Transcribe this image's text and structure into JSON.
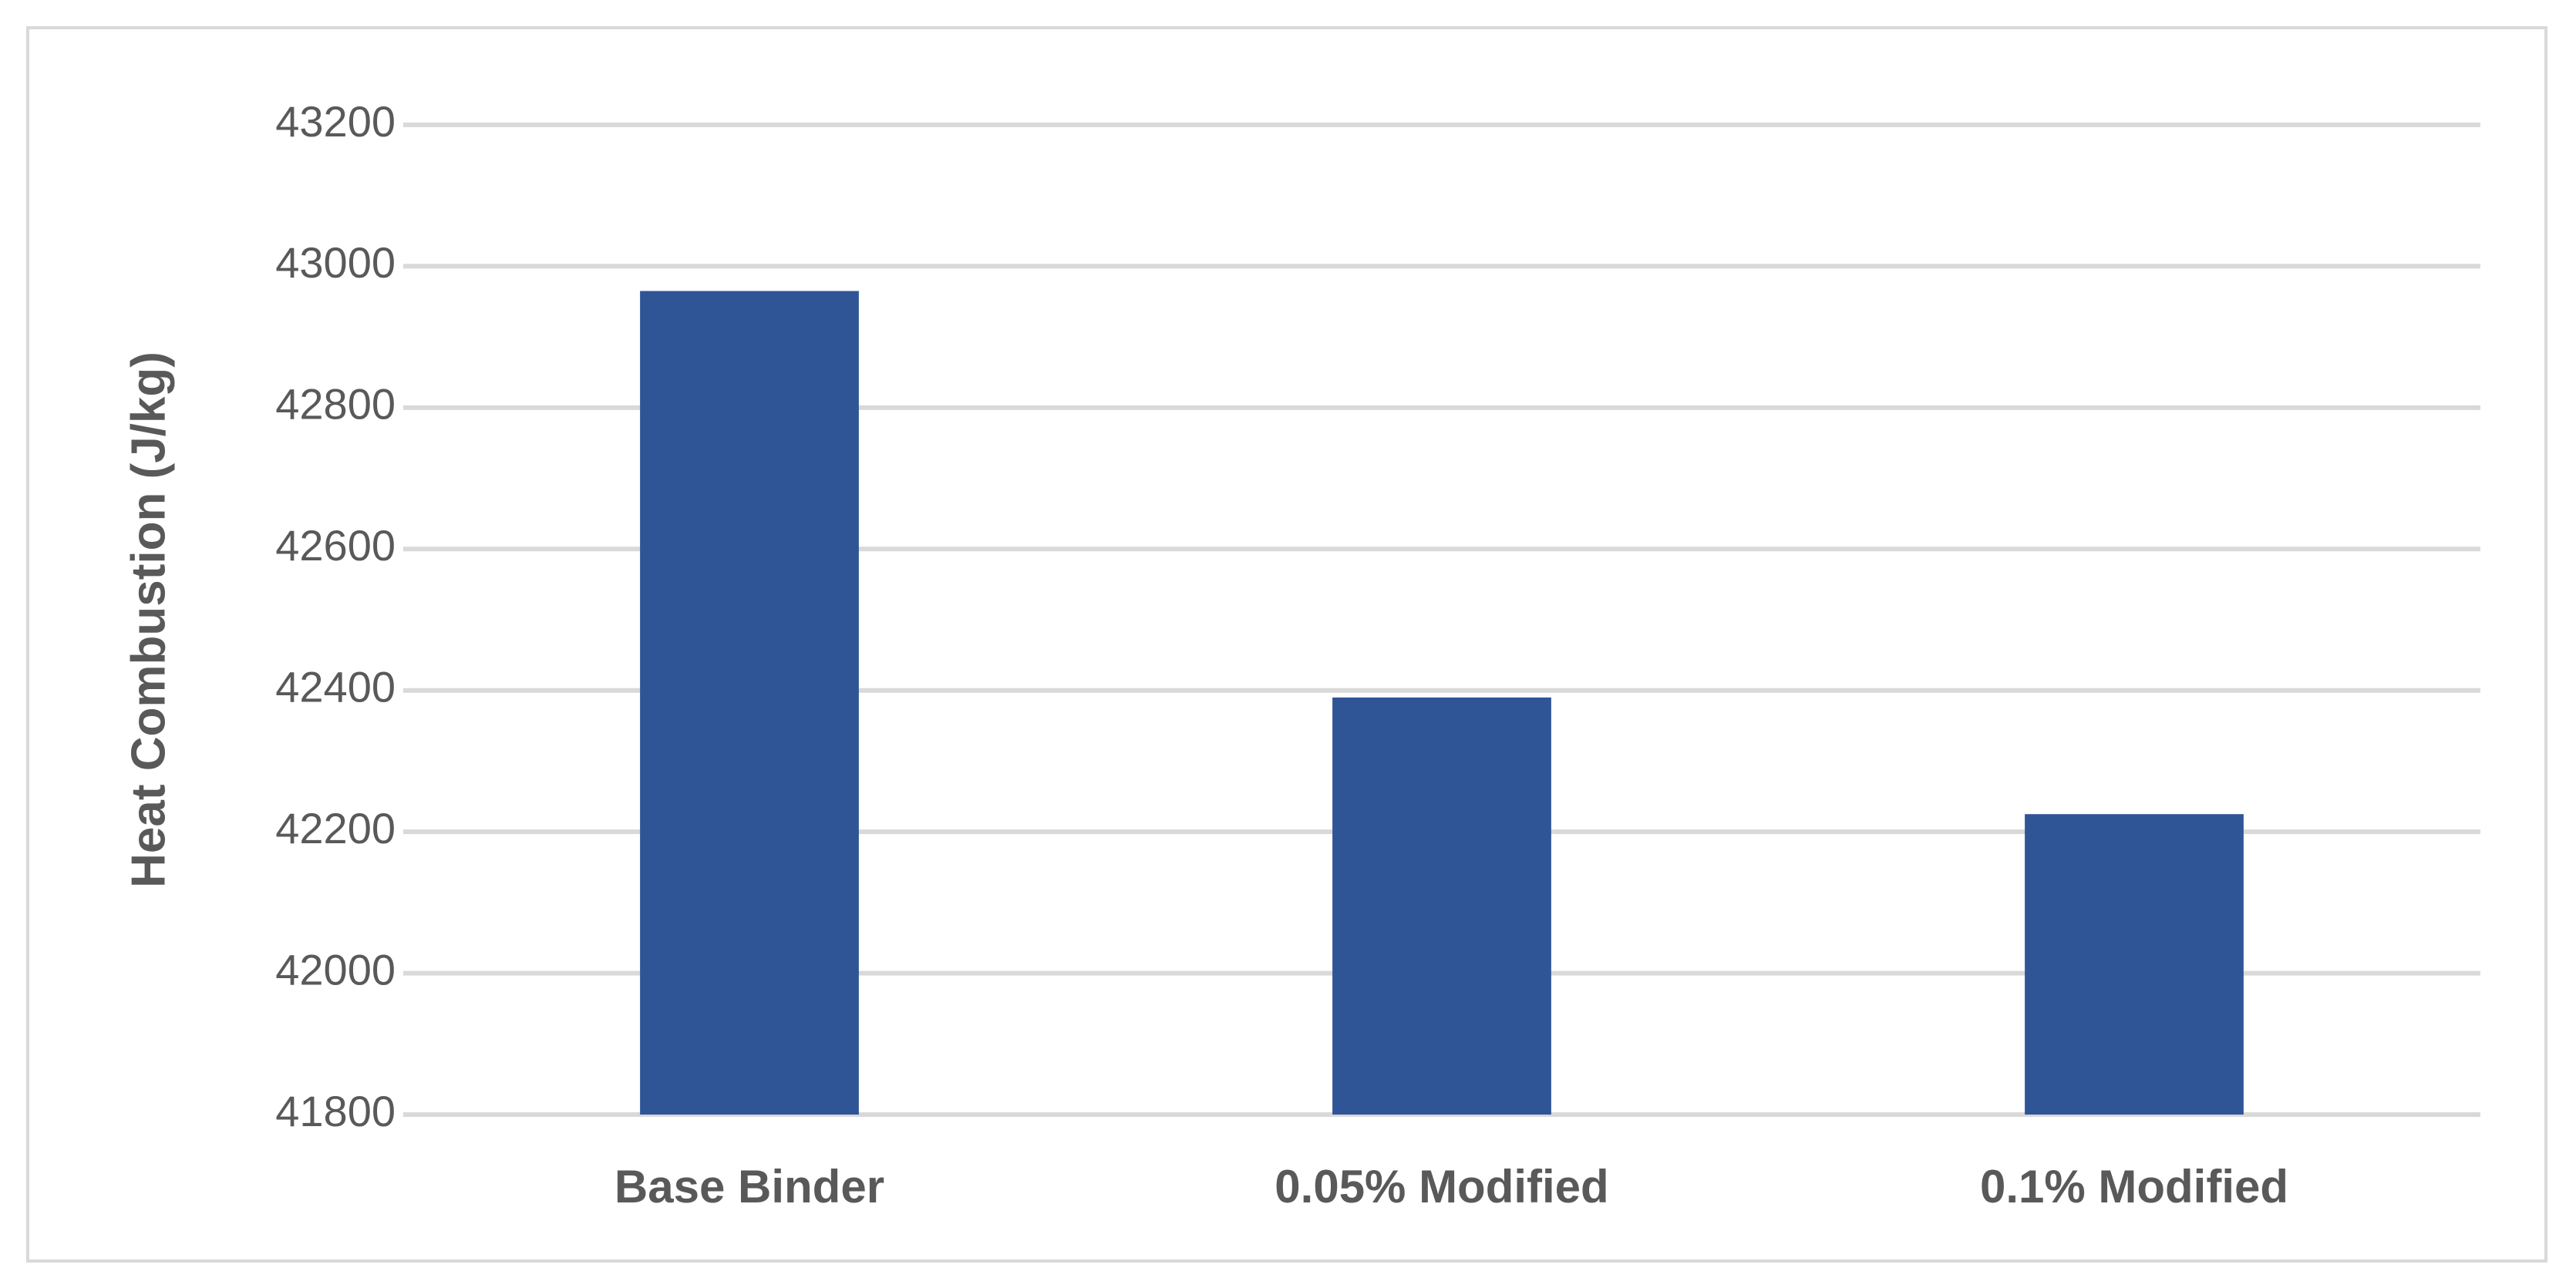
{
  "chart_data": {
    "type": "bar",
    "y_label": "Heat Combustion (J/kg)",
    "categories": [
      "Base Binder",
      "0.05% Modified",
      "0.1% Modified"
    ],
    "values": [
      42965,
      42390,
      42225
    ],
    "color": "#2f5597",
    "ylim": [
      41800,
      43200
    ],
    "yticks": [
      41800,
      42000,
      42200,
      42400,
      42600,
      42800,
      43000,
      43200
    ],
    "grid": true
  }
}
